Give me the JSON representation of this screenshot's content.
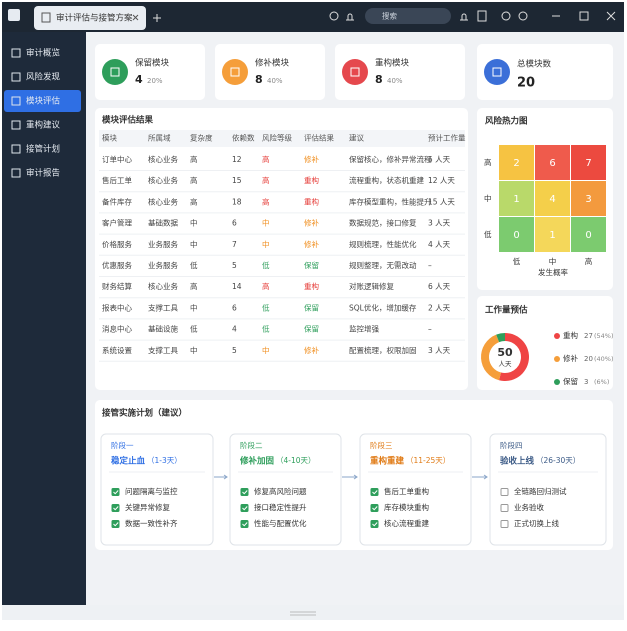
{
  "tab": {
    "title": "审计评估与接管方案"
  },
  "search": {
    "placeholder": "搜索"
  },
  "sidebar": {
    "items": [
      "审计概览",
      "风险发现",
      "模块评估",
      "重构建议",
      "接管计划",
      "审计报告"
    ],
    "active": 2
  },
  "stats": [
    {
      "label": "保留模块",
      "value": 4,
      "percent": "20%",
      "color": "#2e9e5b"
    },
    {
      "label": "修补模块",
      "value": 8,
      "percent": "40%",
      "color": "#f59e3a"
    },
    {
      "label": "重构模块",
      "value": 8,
      "percent": "40%",
      "color": "#e5484d"
    },
    {
      "label": "总模块数",
      "value": 20,
      "color": "#3b6fd8"
    }
  ],
  "table": {
    "title": "模块评估结果",
    "columns": [
      "模块",
      "所属域",
      "复杂度",
      "依赖数",
      "风险等级",
      "评估结果",
      "建议",
      "预计工作量"
    ],
    "colored_columns": [
      4,
      5
    ],
    "text_colors": {
      "高": "#e53935",
      "中": "#f08c1a",
      "低": "#2e9e5b",
      "修补": "#f08c1a",
      "重构": "#e53935",
      "保留": "#2e9e5b"
    },
    "rows": [
      [
        "订单中心",
        "核心业务",
        "高",
        12,
        "高",
        "修补",
        "保留核心，修补异常流程",
        "5 人天"
      ],
      [
        "售后工单",
        "核心业务",
        "高",
        15,
        "高",
        "重构",
        "流程重构，状态机重建",
        "12 人天"
      ],
      [
        "备件库存",
        "核心业务",
        "高",
        18,
        "高",
        "重构",
        "库存模型重构，性能提升",
        "15 人天"
      ],
      [
        "客户管理",
        "基础数据",
        "中",
        6,
        "中",
        "修补",
        "数据规范，接口修复",
        "3 人天"
      ],
      [
        "价格服务",
        "业务服务",
        "中",
        7,
        "中",
        "修补",
        "规则梳理，性能优化",
        "4 人天"
      ],
      [
        "优惠服务",
        "业务服务",
        "低",
        5,
        "低",
        "保留",
        "规则整理，无需改动",
        "–"
      ],
      [
        "财务结算",
        "核心业务",
        "高",
        14,
        "高",
        "重构",
        "对账逻辑修复",
        "6 人天"
      ],
      [
        "报表中心",
        "支撑工具",
        "中",
        6,
        "低",
        "保留",
        "SQL优化，增加缓存",
        "2 人天"
      ],
      [
        "消息中心",
        "基础设施",
        "低",
        4,
        "低",
        "保留",
        "监控增强",
        "–"
      ],
      [
        "系统设置",
        "支撑工具",
        "中",
        5,
        "中",
        "修补",
        "配置梳理，权限加固",
        "3 人天"
      ]
    ]
  },
  "heatmap": {
    "type": "heatmap",
    "title": "风险热力图",
    "row_labels": [
      "高",
      "中",
      "低"
    ],
    "col_labels": [
      "低",
      "中",
      "高"
    ],
    "x_label": "发生概率",
    "values": [
      [
        2,
        6,
        7
      ],
      [
        1,
        4,
        3
      ],
      [
        0,
        1,
        0
      ]
    ],
    "colors": [
      [
        "#f6c342",
        "#ef5b4c",
        "#ec4a3f"
      ],
      [
        "#b9d96a",
        "#f4cf4a",
        "#f39a3e"
      ],
      [
        "#7ccb6f",
        "#f4d75a",
        "#7ccb6f"
      ]
    ]
  },
  "workload": {
    "type": "pie",
    "title": "工作量预估",
    "total": 50,
    "total_unit": "人天",
    "series": [
      {
        "name": "重构",
        "value": 27,
        "share": "(54%)",
        "color": "#ef4444"
      },
      {
        "name": "修补",
        "value": 20,
        "share": "(40%)",
        "color": "#f59e3a"
      },
      {
        "name": "保留",
        "value": 3,
        "share": "(6%)",
        "color": "#2e9e5b"
      }
    ]
  },
  "plan": {
    "title": "接管实施计划（建议）",
    "phases": [
      {
        "stage": "阶段一",
        "name": "稳定止血",
        "days": "（1-3天）",
        "color": "#2f6fe4",
        "checked": true,
        "items": [
          "问题隔离与监控",
          "关键异常修复",
          "数据一致性补齐"
        ]
      },
      {
        "stage": "阶段二",
        "name": "修补加固",
        "days": "（4-10天）",
        "color": "#2e9e5b",
        "checked": true,
        "items": [
          "修复高风险问题",
          "接口稳定性提升",
          "性能与配置优化"
        ]
      },
      {
        "stage": "阶段三",
        "name": "重构重建",
        "days": "（11-25天）",
        "color": "#e07b16",
        "checked": true,
        "items": [
          "售后工单重构",
          "库存模块重构",
          "核心流程重建"
        ]
      },
      {
        "stage": "阶段四",
        "name": "验收上线",
        "days": "（26-30天）",
        "color": "#3b5a86",
        "checked": false,
        "items": [
          "全链路回归测试",
          "业务验收",
          "正式切换上线"
        ]
      }
    ]
  }
}
